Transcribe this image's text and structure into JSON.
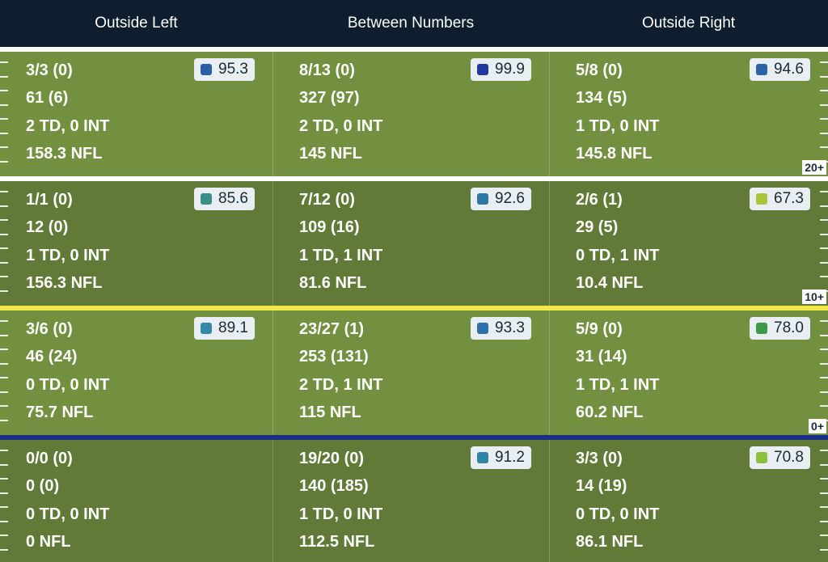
{
  "header": {
    "columns": [
      "Outside Left",
      "Between Numbers",
      "Outside Right"
    ]
  },
  "zones": [
    {
      "cells": [
        {
          "lines": [
            "3/3 (0)",
            "61 (6)",
            "2 TD, 0 INT",
            "158.3 NFL"
          ],
          "grade": "95.3",
          "grade_color": "#2a5fa8"
        },
        {
          "lines": [
            "8/13 (0)",
            "327 (97)",
            "2 TD, 0 INT",
            "145 NFL"
          ],
          "grade": "99.9",
          "grade_color": "#1f3a9c"
        },
        {
          "lines": [
            "5/8 (0)",
            "134 (5)",
            "1 TD, 0 INT",
            "145.8 NFL"
          ],
          "grade": "94.6",
          "grade_color": "#2b63a8"
        }
      ],
      "yard_label": "20+"
    },
    {
      "cells": [
        {
          "lines": [
            "1/1 (0)",
            "12 (0)",
            "1 TD, 0 INT",
            "156.3 NFL"
          ],
          "grade": "85.6",
          "grade_color": "#3a8e86"
        },
        {
          "lines": [
            "7/12 (0)",
            "109 (16)",
            "1 TD, 1 INT",
            "81.6 NFL"
          ],
          "grade": "92.6",
          "grade_color": "#2e78a8"
        },
        {
          "lines": [
            "2/6 (1)",
            "29 (5)",
            "0 TD, 1 INT",
            "10.4 NFL"
          ],
          "grade": "67.3",
          "grade_color": "#a8c63a"
        }
      ],
      "yard_label": "10+"
    },
    {
      "cells": [
        {
          "lines": [
            "3/6 (0)",
            "46 (24)",
            "0 TD, 0 INT",
            "75.7 NFL"
          ],
          "grade": "89.1",
          "grade_color": "#3488a8"
        },
        {
          "lines": [
            "23/27 (1)",
            "253 (131)",
            "2 TD, 1 INT",
            "115 NFL"
          ],
          "grade": "93.3",
          "grade_color": "#2e70a8"
        },
        {
          "lines": [
            "5/9 (0)",
            "31 (14)",
            "1 TD, 1 INT",
            "60.2 NFL"
          ],
          "grade": "78.0",
          "grade_color": "#3a9a4a"
        }
      ],
      "yard_label": "0+"
    },
    {
      "cells": [
        {
          "lines": [
            "0/0 (0)",
            "0 (0)",
            "0 TD, 0 INT",
            "0 NFL"
          ],
          "grade": "",
          "grade_color": ""
        },
        {
          "lines": [
            "19/20 (0)",
            "140 (185)",
            "1 TD, 0 INT",
            "112.5 NFL"
          ],
          "grade": "91.2",
          "grade_color": "#3283a8"
        },
        {
          "lines": [
            "3/3 (0)",
            "14 (19)",
            "0 TD, 0 INT",
            "86.1 NFL"
          ],
          "grade": "70.8",
          "grade_color": "#8cbf3a"
        }
      ],
      "yard_label": ""
    }
  ],
  "separators": [
    "#ffffff",
    "#ffffff",
    "#f2e84a",
    "#1a2f86"
  ]
}
